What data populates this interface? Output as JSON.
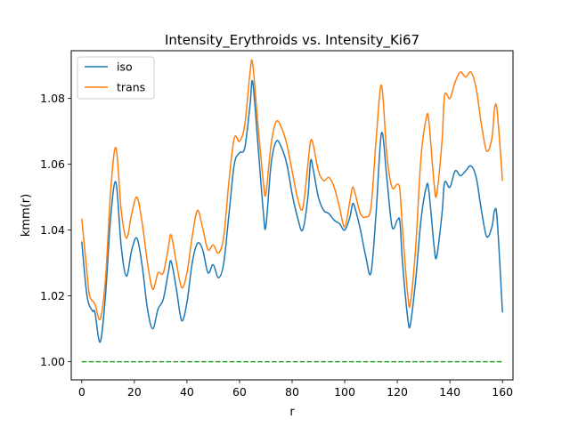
{
  "chart_data": {
    "type": "line",
    "title": "Intensity_Erythroids vs. Intensity_Ki67",
    "xlabel": "r",
    "ylabel": "kmm(r)",
    "xlim": [
      -4,
      164
    ],
    "ylim": [
      0.9945,
      1.0945
    ],
    "xticks": [
      0,
      20,
      40,
      60,
      80,
      100,
      120,
      140,
      160
    ],
    "xtick_labels": [
      "0",
      "20",
      "40",
      "60",
      "80",
      "100",
      "120",
      "140",
      "160"
    ],
    "yticks": [
      1.0,
      1.02,
      1.04,
      1.06,
      1.08
    ],
    "ytick_labels": [
      "1.00",
      "1.02",
      "1.04",
      "1.06",
      "1.08"
    ],
    "grid": false,
    "legend_position": "upper left",
    "series": [
      {
        "name": "iso",
        "color": "#1f77b4",
        "style": "solid",
        "points": [
          [
            0,
            1.0365
          ],
          [
            2,
            1.02
          ],
          [
            4,
            1.0155
          ],
          [
            5,
            1.015
          ],
          [
            7,
            1.006
          ],
          [
            9,
            1.02
          ],
          [
            11,
            1.044
          ],
          [
            13,
            1.0545
          ],
          [
            15,
            1.035
          ],
          [
            17,
            1.026
          ],
          [
            19,
            1.034
          ],
          [
            21,
            1.0375
          ],
          [
            23,
            1.029
          ],
          [
            25,
            1.016
          ],
          [
            27,
            1.01
          ],
          [
            29,
            1.016
          ],
          [
            31,
            1.019
          ],
          [
            33,
            1.0275
          ],
          [
            34,
            1.0305
          ],
          [
            36,
            1.022
          ],
          [
            38,
            1.0125
          ],
          [
            40,
            1.018
          ],
          [
            42,
            1.03
          ],
          [
            44,
            1.036
          ],
          [
            46,
            1.034
          ],
          [
            48,
            1.027
          ],
          [
            50,
            1.0295
          ],
          [
            52,
            1.0255
          ],
          [
            54,
            1.03
          ],
          [
            56,
            1.045
          ],
          [
            58,
            1.06
          ],
          [
            60,
            1.0635
          ],
          [
            62,
            1.065
          ],
          [
            64,
            1.078
          ],
          [
            65,
            1.085
          ],
          [
            67,
            1.066
          ],
          [
            69,
            1.046
          ],
          [
            70,
            1.041
          ],
          [
            72,
            1.06
          ],
          [
            74,
            1.067
          ],
          [
            76,
            1.065
          ],
          [
            78,
            1.06
          ],
          [
            80,
            1.051
          ],
          [
            82,
            1.044
          ],
          [
            84,
            1.04
          ],
          [
            86,
            1.05
          ],
          [
            87,
            1.061
          ],
          [
            88,
            1.0585
          ],
          [
            90,
            1.05
          ],
          [
            92,
            1.046
          ],
          [
            94,
            1.045
          ],
          [
            96,
            1.043
          ],
          [
            98,
            1.042
          ],
          [
            100,
            1.04
          ],
          [
            102,
            1.044
          ],
          [
            103,
            1.048
          ],
          [
            104,
            1.0465
          ],
          [
            106,
            1.04
          ],
          [
            108,
            1.032
          ],
          [
            110,
            1.027
          ],
          [
            112,
            1.046
          ],
          [
            114,
            1.0695
          ],
          [
            116,
            1.056
          ],
          [
            118,
            1.041
          ],
          [
            120,
            1.043
          ],
          [
            121,
            1.0425
          ],
          [
            122,
            1.03
          ],
          [
            124,
            1.013
          ],
          [
            125,
            1.0115
          ],
          [
            127,
            1.025
          ],
          [
            129,
            1.043
          ],
          [
            131,
            1.053
          ],
          [
            132,
            1.052
          ],
          [
            134,
            1.035
          ],
          [
            135,
            1.032
          ],
          [
            137,
            1.045
          ],
          [
            138,
            1.0545
          ],
          [
            140,
            1.053
          ],
          [
            142,
            1.058
          ],
          [
            144,
            1.0565
          ],
          [
            146,
            1.058
          ],
          [
            148,
            1.0595
          ],
          [
            150,
            1.056
          ],
          [
            152,
            1.046
          ],
          [
            154,
            1.038
          ],
          [
            156,
            1.041
          ],
          [
            157,
            1.046
          ],
          [
            158,
            1.043
          ],
          [
            160,
            1.015
          ]
        ]
      },
      {
        "name": "trans",
        "color": "#ff7f0e",
        "style": "solid",
        "points": [
          [
            0,
            1.0435
          ],
          [
            2,
            1.027
          ],
          [
            3,
            1.02
          ],
          [
            5,
            1.0175
          ],
          [
            7,
            1.013
          ],
          [
            9,
            1.025
          ],
          [
            11,
            1.052
          ],
          [
            13,
            1.065
          ],
          [
            15,
            1.046
          ],
          [
            17,
            1.0375
          ],
          [
            19,
            1.045
          ],
          [
            21,
            1.05
          ],
          [
            23,
            1.042
          ],
          [
            25,
            1.03
          ],
          [
            27,
            1.022
          ],
          [
            29,
            1.027
          ],
          [
            31,
            1.027
          ],
          [
            33,
            1.035
          ],
          [
            34,
            1.0385
          ],
          [
            36,
            1.03
          ],
          [
            38,
            1.0225
          ],
          [
            40,
            1.027
          ],
          [
            42,
            1.038
          ],
          [
            44,
            1.046
          ],
          [
            46,
            1.0405
          ],
          [
            48,
            1.034
          ],
          [
            50,
            1.0355
          ],
          [
            52,
            1.033
          ],
          [
            54,
            1.038
          ],
          [
            56,
            1.055
          ],
          [
            58,
            1.068
          ],
          [
            60,
            1.067
          ],
          [
            62,
            1.072
          ],
          [
            64,
            1.088
          ],
          [
            65,
            1.0905
          ],
          [
            67,
            1.072
          ],
          [
            69,
            1.055
          ],
          [
            70,
            1.051
          ],
          [
            72,
            1.066
          ],
          [
            74,
            1.073
          ],
          [
            76,
            1.071
          ],
          [
            78,
            1.066
          ],
          [
            80,
            1.058
          ],
          [
            82,
            1.05
          ],
          [
            84,
            1.0465
          ],
          [
            86,
            1.06
          ],
          [
            87,
            1.067
          ],
          [
            88,
            1.066
          ],
          [
            90,
            1.058
          ],
          [
            92,
            1.055
          ],
          [
            94,
            1.056
          ],
          [
            96,
            1.053
          ],
          [
            98,
            1.047
          ],
          [
            100,
            1.041
          ],
          [
            102,
            1.049
          ],
          [
            103,
            1.053
          ],
          [
            104,
            1.051
          ],
          [
            106,
            1.045
          ],
          [
            108,
            1.044
          ],
          [
            110,
            1.047
          ],
          [
            112,
            1.068
          ],
          [
            114,
            1.084
          ],
          [
            116,
            1.063
          ],
          [
            118,
            1.053
          ],
          [
            120,
            1.054
          ],
          [
            121,
            1.052
          ],
          [
            122,
            1.04
          ],
          [
            124,
            1.02
          ],
          [
            125,
            1.018
          ],
          [
            127,
            1.035
          ],
          [
            129,
            1.062
          ],
          [
            131,
            1.074
          ],
          [
            132,
            1.073
          ],
          [
            134,
            1.054
          ],
          [
            135,
            1.051
          ],
          [
            137,
            1.067
          ],
          [
            138,
            1.081
          ],
          [
            140,
            1.08
          ],
          [
            142,
            1.085
          ],
          [
            144,
            1.088
          ],
          [
            146,
            1.0865
          ],
          [
            148,
            1.088
          ],
          [
            150,
            1.083
          ],
          [
            152,
            1.072
          ],
          [
            154,
            1.064
          ],
          [
            156,
            1.068
          ],
          [
            157,
            1.077
          ],
          [
            158,
            1.076
          ],
          [
            160,
            1.055
          ]
        ]
      },
      {
        "name": "",
        "color": "#2ca02c",
        "style": "dashed",
        "points": [
          [
            0,
            1.0
          ],
          [
            160,
            1.0
          ]
        ]
      }
    ]
  }
}
